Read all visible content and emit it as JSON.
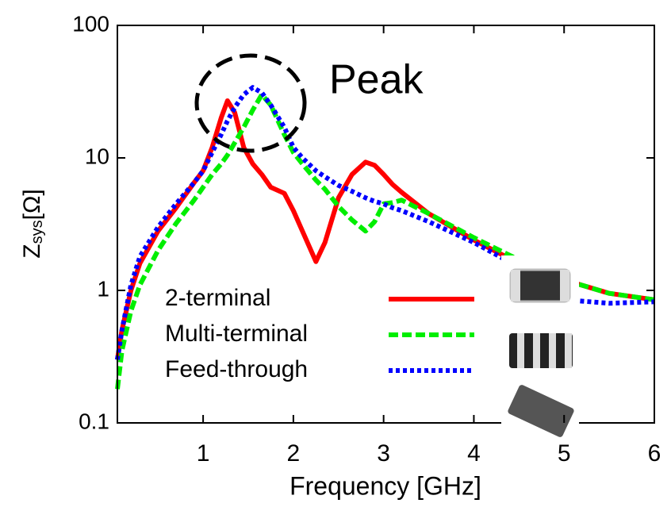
{
  "chart_data": {
    "type": "line",
    "x_label": "Frequency [GHz]",
    "y_label_parts": [
      "Z",
      "sys",
      "[Ω]"
    ],
    "annotation": "Peak",
    "log_y": true,
    "xlim": [
      0.05,
      6
    ],
    "xticks": [
      1,
      2,
      3,
      4,
      5,
      6
    ],
    "ylim": [
      0.1,
      100
    ],
    "yticks": [
      0.1,
      1,
      10,
      100
    ],
    "legend": "lower left",
    "x": [
      0.05,
      0.1,
      0.2,
      0.3,
      0.5,
      0.7,
      0.9,
      1.0,
      1.1,
      1.2,
      1.27,
      1.35,
      1.45,
      1.55,
      1.65,
      1.75,
      1.9,
      2.0,
      2.1,
      2.25,
      2.35,
      2.5,
      2.65,
      2.8,
      2.9,
      3.0,
      3.1,
      3.2,
      3.5,
      4.0,
      4.5,
      5.0,
      5.5,
      6.0
    ],
    "series": [
      {
        "name": "2-terminal",
        "color": "#ff0000",
        "dash": "solid",
        "values": [
          0.3,
          0.5,
          1.0,
          1.6,
          2.8,
          4.2,
          6.5,
          8,
          12,
          20,
          27,
          22,
          12,
          9,
          7.5,
          6,
          5.4,
          4,
          2.8,
          1.65,
          2.3,
          5,
          7.5,
          9.3,
          8.8,
          7.5,
          6.3,
          5.5,
          3.8,
          2.4,
          1.6,
          1.2,
          0.95,
          0.85
        ]
      },
      {
        "name": "Multi-terminal",
        "color": "#00ee00",
        "dash": "dashed",
        "values": [
          0.18,
          0.35,
          0.7,
          1.1,
          2.0,
          3.2,
          4.8,
          6,
          7.5,
          9,
          10.5,
          13,
          17,
          23,
          30,
          25,
          15,
          11,
          9,
          6.8,
          5.8,
          4.3,
          3.4,
          2.8,
          3.3,
          4.5,
          4.6,
          4.8,
          3.8,
          2.5,
          1.7,
          1.2,
          0.95,
          0.85
        ]
      },
      {
        "name": "Feed-through",
        "color": "#0000ff",
        "dash": "dotted",
        "values": [
          0.3,
          0.5,
          1.1,
          1.8,
          3.0,
          4.5,
          6.5,
          8,
          11,
          15,
          19,
          24,
          30,
          34,
          31,
          25,
          17,
          12,
          10,
          8,
          7.2,
          6.2,
          5.6,
          5,
          4.7,
          4.5,
          4.2,
          4,
          3.3,
          2.3,
          1.5,
          0.85,
          0.8,
          0.82
        ]
      }
    ]
  }
}
